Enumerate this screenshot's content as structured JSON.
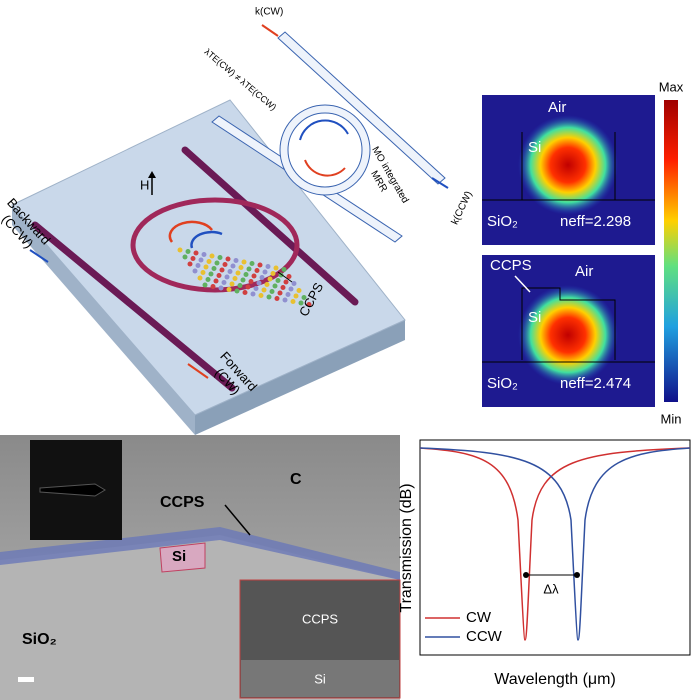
{
  "device": {
    "backward": [
      "Backward",
      "(CCW)"
    ],
    "field": "H",
    "material": "CCPS",
    "forward": [
      "Forward",
      "(CW)"
    ]
  },
  "schematic": {
    "k_cw": "k(CW)",
    "condition": "λTE(CW) ≠ λTE(CCW)",
    "ring": [
      "MO integrated",
      "MRR"
    ],
    "k_ccw": "k(CCW)"
  },
  "modes": {
    "colorbar": {
      "max": "Max",
      "min": "Min"
    },
    "panels": [
      {
        "top": "Air",
        "core": "Si",
        "substrate": "SiO₂",
        "neff": "neff=2.298"
      },
      {
        "layer": "CCPS",
        "top": "Air",
        "core": "Si",
        "substrate": "SiO₂",
        "neff": "neff=2.474"
      }
    ]
  },
  "tem": {
    "layer": "CCPS",
    "cap": "C",
    "core": "Si",
    "substrate": "SiO₂",
    "inset": {
      "layer": "CCPS",
      "core": "Si"
    }
  },
  "spectrum": {
    "ylabel": "Transmission (dB)",
    "xlabel": "Wavelength (μm)",
    "shift": "Δλ",
    "legend": [
      "CW",
      "CCW"
    ]
  }
}
